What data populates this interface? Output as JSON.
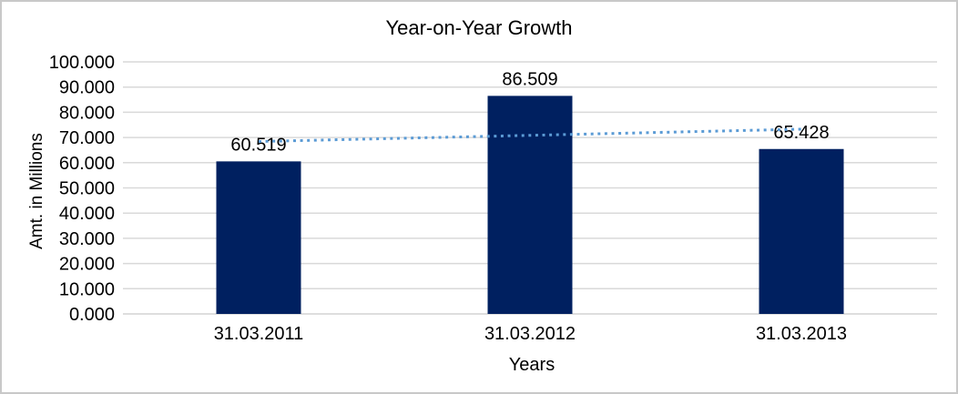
{
  "chart_data": {
    "type": "bar",
    "title": "Year-on-Year Growth",
    "xlabel": "Years",
    "ylabel": "Amt. in Millions",
    "categories": [
      "31.03.2011",
      "31.03.2012",
      "31.03.2013"
    ],
    "values": [
      60.519,
      86.509,
      65.428
    ],
    "data_labels": [
      "60.519",
      "86.509",
      "65.428"
    ],
    "ylim": [
      0,
      100
    ],
    "y_tick_step": 10,
    "y_tick_labels": [
      "0.000",
      "10.000",
      "20.000",
      "30.000",
      "40.000",
      "50.000",
      "60.000",
      "70.000",
      "80.000",
      "90.000",
      "100.000"
    ],
    "grid": "horizontal",
    "legend": "none",
    "trendline": {
      "type": "linear",
      "style": "dotted",
      "start_value": 68.4,
      "end_value": 73.3
    },
    "colors": {
      "bar": "#002060",
      "trendline": "#5B9BD5",
      "gridline": "#D9D9D9",
      "axis_line": "#D9D9D9",
      "text": "#000000",
      "frame_border": "#C8C8C8",
      "background": "#FFFFFF"
    }
  }
}
